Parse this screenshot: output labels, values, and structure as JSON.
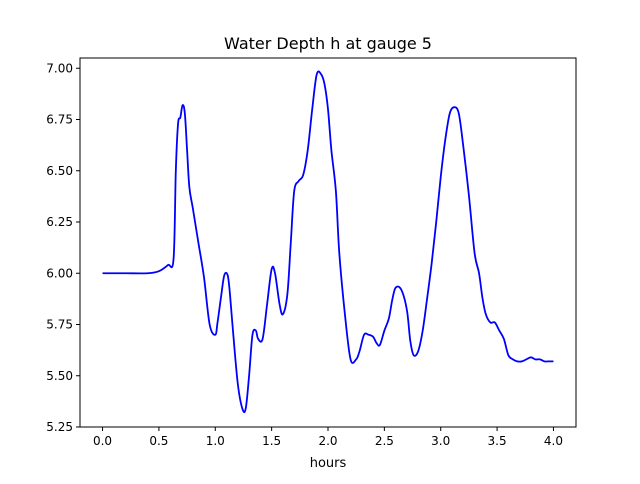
{
  "chart_data": {
    "type": "line",
    "title": "Water Depth h at gauge 5",
    "xlabel": "hours",
    "ylabel": "",
    "xlim": [
      -0.2,
      4.2
    ],
    "ylim": [
      5.25,
      7.05
    ],
    "xticks": [
      0.0,
      0.5,
      1.0,
      1.5,
      2.0,
      2.5,
      3.0,
      3.5,
      4.0
    ],
    "xtick_labels": [
      "0.0",
      "0.5",
      "1.0",
      "1.5",
      "2.0",
      "2.5",
      "3.0",
      "3.5",
      "4.0"
    ],
    "yticks": [
      5.25,
      5.5,
      5.75,
      6.0,
      6.25,
      6.5,
      6.75,
      7.0
    ],
    "ytick_labels": [
      "5.25",
      "5.50",
      "5.75",
      "6.00",
      "6.25",
      "6.50",
      "6.75",
      "7.00"
    ],
    "grid": false,
    "series": [
      {
        "color": "#0000ff",
        "x": [
          0.0,
          0.2,
          0.4,
          0.5,
          0.58,
          0.63,
          0.65,
          0.67,
          0.69,
          0.71,
          0.73,
          0.75,
          0.77,
          0.8,
          0.85,
          0.9,
          0.95,
          1.0,
          1.02,
          1.05,
          1.08,
          1.11,
          1.13,
          1.16,
          1.2,
          1.24,
          1.27,
          1.3,
          1.33,
          1.36,
          1.38,
          1.42,
          1.46,
          1.5,
          1.53,
          1.57,
          1.6,
          1.64,
          1.67,
          1.7,
          1.74,
          1.78,
          1.82,
          1.86,
          1.9,
          1.94,
          1.97,
          2.0,
          2.03,
          2.07,
          2.1,
          2.15,
          2.2,
          2.25,
          2.28,
          2.32,
          2.36,
          2.4,
          2.43,
          2.46,
          2.5,
          2.54,
          2.57,
          2.6,
          2.65,
          2.7,
          2.73,
          2.76,
          2.8,
          2.84,
          2.88,
          2.92,
          2.96,
          3.0,
          3.04,
          3.08,
          3.12,
          3.16,
          3.2,
          3.25,
          3.3,
          3.34,
          3.37,
          3.4,
          3.44,
          3.48,
          3.52,
          3.56,
          3.6,
          3.64,
          3.68,
          3.72,
          3.76,
          3.8,
          3.84,
          3.88,
          3.92,
          3.95,
          4.0
        ],
        "y": [
          6.0,
          6.0,
          6.0,
          6.01,
          6.04,
          6.07,
          6.5,
          6.73,
          6.76,
          6.82,
          6.78,
          6.6,
          6.42,
          6.32,
          6.15,
          5.98,
          5.75,
          5.7,
          5.76,
          5.88,
          5.99,
          5.99,
          5.9,
          5.7,
          5.46,
          5.34,
          5.34,
          5.5,
          5.7,
          5.72,
          5.68,
          5.68,
          5.85,
          6.02,
          6.0,
          5.85,
          5.8,
          5.9,
          6.15,
          6.4,
          6.45,
          6.48,
          6.6,
          6.8,
          6.97,
          6.97,
          6.92,
          6.8,
          6.6,
          6.4,
          6.1,
          5.8,
          5.58,
          5.58,
          5.62,
          5.7,
          5.7,
          5.69,
          5.66,
          5.65,
          5.72,
          5.78,
          5.87,
          5.93,
          5.92,
          5.82,
          5.67,
          5.6,
          5.62,
          5.72,
          5.88,
          6.05,
          6.25,
          6.47,
          6.65,
          6.78,
          6.81,
          6.78,
          6.62,
          6.38,
          6.1,
          6.0,
          5.88,
          5.8,
          5.76,
          5.76,
          5.72,
          5.68,
          5.6,
          5.58,
          5.57,
          5.57,
          5.58,
          5.59,
          5.58,
          5.58,
          5.57,
          5.57,
          5.57
        ]
      }
    ]
  }
}
